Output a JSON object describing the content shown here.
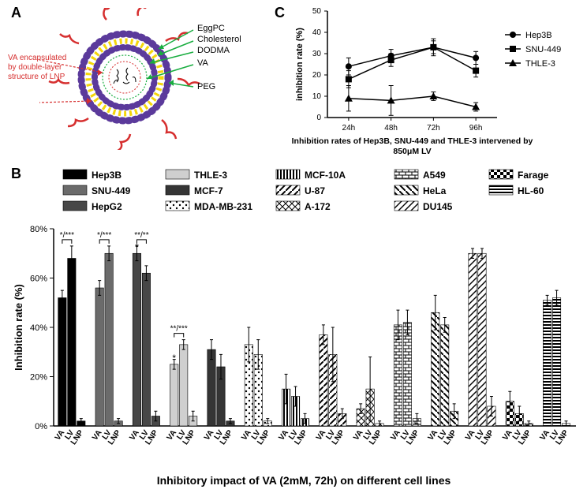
{
  "panelA": {
    "label": "A",
    "legend": [
      {
        "text": "EggPC",
        "color": "#5b3a9b"
      },
      {
        "text": "Cholesterol",
        "color": "#f4d60a"
      },
      {
        "text": "DODMA",
        "color": "#000000"
      },
      {
        "text": "VA",
        "color": "#18ad3f"
      },
      {
        "text": "PEG",
        "color": "#d62f2f"
      }
    ],
    "annotation": "VA encapsulated by double-layer structure of LNP",
    "annotation_color": "#d62f2f"
  },
  "panelC": {
    "label": "C",
    "ylabel": "inhibition rate (%)",
    "caption": "Inhibition rates of Hep3B, SNU-449 and THLE-3 intervened by 850μM LV",
    "x_categories": [
      "24h",
      "48h",
      "72h",
      "96h"
    ],
    "ylim": [
      0,
      50
    ],
    "ytick_step": 10,
    "title_fontsize": 11,
    "label_fontsize": 11,
    "series": [
      {
        "name": "Hep3B",
        "marker": "circle",
        "values": [
          24,
          29,
          33,
          28
        ],
        "err": [
          4,
          3,
          4,
          3
        ]
      },
      {
        "name": "SNU-449",
        "marker": "square",
        "values": [
          18,
          27,
          33,
          22
        ],
        "err": [
          4,
          3,
          3,
          3
        ]
      },
      {
        "name": "THLE-3",
        "marker": "triangle",
        "values": [
          9,
          8,
          10,
          5
        ],
        "err": [
          6,
          7,
          2,
          2
        ]
      }
    ],
    "line_color": "#000000"
  },
  "panelB": {
    "label": "B",
    "ylabel": "Inhibition rate (%)",
    "caption": "Inhibitory impact of VA (2mM, 72h) on different cell lines",
    "ylim": [
      0,
      80
    ],
    "ytick_step": 20,
    "cell_lines": [
      {
        "name": "Hep3B",
        "pattern": "black",
        "va": 52,
        "lv": 68,
        "lnp": 2,
        "va_err": 3,
        "lv_err": 5,
        "lnp_err": 1,
        "sig": "*/***"
      },
      {
        "name": "SNU-449",
        "pattern": "gray60",
        "va": 56,
        "lv": 70,
        "lnp": 2,
        "va_err": 3,
        "lv_err": 3,
        "lnp_err": 1,
        "sig": "*/***"
      },
      {
        "name": "HepG2",
        "pattern": "gray40",
        "va": 70,
        "lv": 62,
        "lnp": 4,
        "va_err": 3,
        "lv_err": 3,
        "lnp_err": 2,
        "sig": "**/**"
      },
      {
        "name": "THLE-3",
        "pattern": "gray80",
        "va": 25,
        "lv": 33,
        "lnp": 4,
        "va_err": 2,
        "lv_err": 2,
        "lnp_err": 2,
        "sig": "**/***"
      },
      {
        "name": "MCF-7",
        "pattern": "gray30",
        "va": 31,
        "lv": 24,
        "lnp": 2,
        "va_err": 4,
        "lv_err": 5,
        "lnp_err": 1,
        "sig": ""
      },
      {
        "name": "MDA-MB-231",
        "pattern": "dots",
        "va": 33,
        "lv": 29,
        "lnp": 2,
        "va_err": 7,
        "lv_err": 6,
        "lnp_err": 1,
        "sig": ""
      },
      {
        "name": "MCF-10A",
        "pattern": "vstripe",
        "va": 15,
        "lv": 12,
        "lnp": 3,
        "va_err": 6,
        "lv_err": 4,
        "lnp_err": 2,
        "sig": ""
      },
      {
        "name": "U-87",
        "pattern": "diag1",
        "va": 37,
        "lv": 29,
        "lnp": 5,
        "va_err": 4,
        "lv_err": 11,
        "lnp_err": 2,
        "sig": ""
      },
      {
        "name": "A-172",
        "pattern": "cross",
        "va": 7,
        "lv": 15,
        "lnp": 1,
        "va_err": 2,
        "lv_err": 13,
        "lnp_err": 1,
        "sig": ""
      },
      {
        "name": "A549",
        "pattern": "brick",
        "va": 41,
        "lv": 42,
        "lnp": 3,
        "va_err": 6,
        "lv_err": 5,
        "lnp_err": 2,
        "sig": ""
      },
      {
        "name": "HeLa",
        "pattern": "diag2",
        "va": 46,
        "lv": 41,
        "lnp": 6,
        "va_err": 7,
        "lv_err": 3,
        "lnp_err": 3,
        "sig": ""
      },
      {
        "name": "DU145",
        "pattern": "diag3",
        "va": 70,
        "lv": 70,
        "lnp": 8,
        "va_err": 2,
        "lv_err": 2,
        "lnp_err": 4,
        "sig": ""
      },
      {
        "name": "Farage",
        "pattern": "checker",
        "va": 10,
        "lv": 5,
        "lnp": 1,
        "va_err": 4,
        "lv_err": 3,
        "lnp_err": 1,
        "sig": ""
      },
      {
        "name": "HL-60",
        "pattern": "hstripe",
        "va": 51,
        "lv": 52,
        "lnp": 1,
        "va_err": 2,
        "lv_err": 3,
        "lnp_err": 1,
        "sig": ""
      }
    ],
    "pattern_colors": {
      "black": "#000000",
      "gray60": "#666666",
      "gray40": "#4a4a4a",
      "gray80": "#c8c8c8",
      "gray30": "#3a3a3a"
    }
  }
}
